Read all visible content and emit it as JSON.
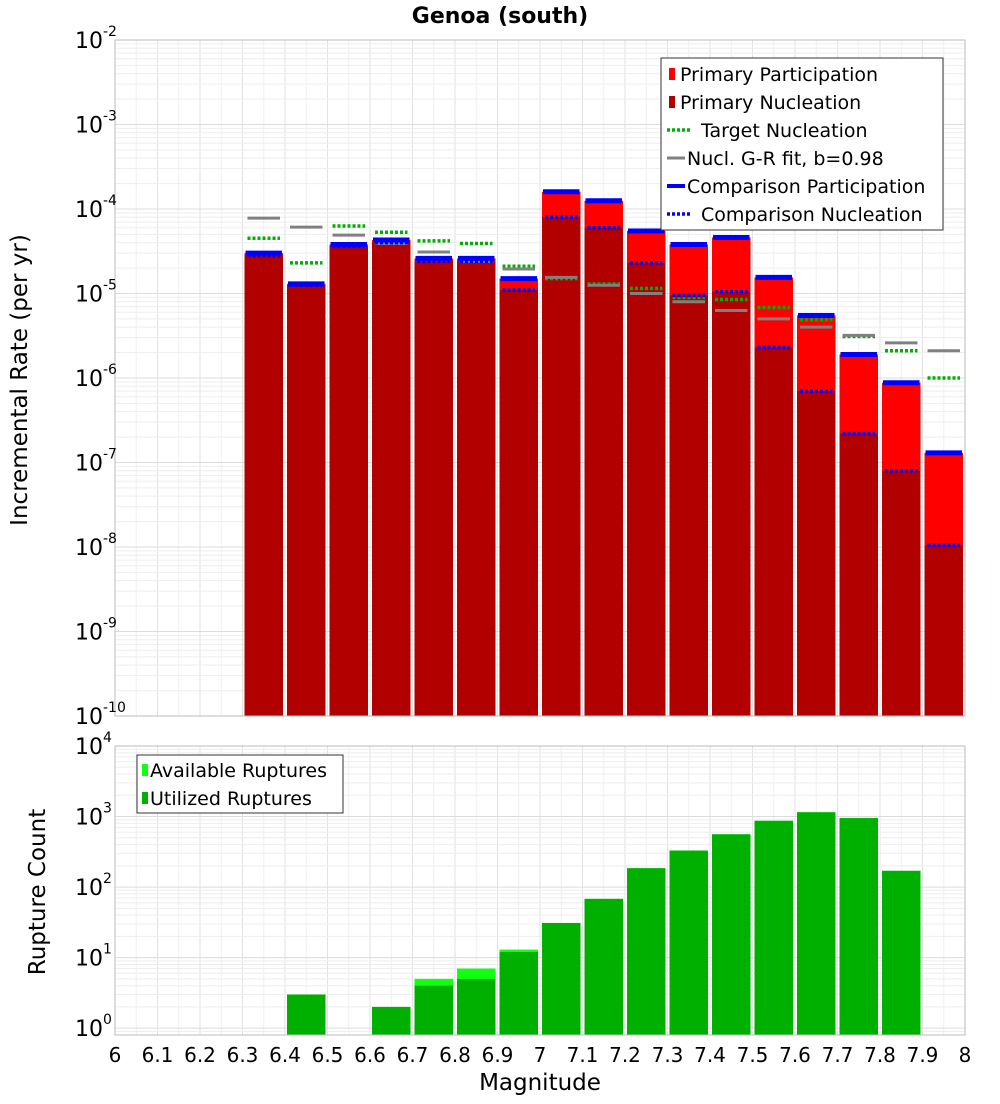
{
  "chart_data": [
    {
      "type": "bar",
      "title": "Genoa (south)",
      "xlabel": "",
      "ylabel": "Incremental Rate (per yr)",
      "y_scale": "log",
      "ylim": [
        1e-10,
        0.01
      ],
      "y_ticks": [
        {
          "base": "10",
          "exp": "-10",
          "value": 1e-10
        },
        {
          "base": "10",
          "exp": "-9",
          "value": 1e-09
        },
        {
          "base": "10",
          "exp": "-8",
          "value": 1e-08
        },
        {
          "base": "10",
          "exp": "-7",
          "value": 1e-07
        },
        {
          "base": "10",
          "exp": "-6",
          "value": 1e-06
        },
        {
          "base": "10",
          "exp": "-5",
          "value": 1e-05
        },
        {
          "base": "10",
          "exp": "-4",
          "value": 0.0001
        },
        {
          "base": "10",
          "exp": "-3",
          "value": 0.001
        },
        {
          "base": "10",
          "exp": "-2",
          "value": 0.01
        }
      ],
      "xlim": [
        6.0,
        8.0
      ],
      "grid": true,
      "legend_position": "top-right",
      "bin_width": 0.1,
      "series": [
        {
          "name": "Primary Participation",
          "kind": "bar",
          "color": "#ff0000",
          "x": [
            6.35,
            6.45,
            6.55,
            6.65,
            6.75,
            6.85,
            6.95,
            7.05,
            7.15,
            7.25,
            7.35,
            7.45,
            7.55,
            7.65,
            7.75,
            7.85,
            7.95
          ],
          "values": [
            3e-05,
            1.3e-05,
            3.8e-05,
            4.3e-05,
            2.6e-05,
            2.6e-05,
            1.5e-05,
            0.00016,
            0.000125,
            5.5e-05,
            3.8e-05,
            4.6e-05,
            1.55e-05,
            5.5e-06,
            1.9e-06,
            8.8e-07,
            1.3e-07
          ]
        },
        {
          "name": "Primary Nucleation",
          "kind": "bar",
          "color": "#b20000",
          "x": [
            6.35,
            6.45,
            6.55,
            6.65,
            6.75,
            6.85,
            6.95,
            7.05,
            7.15,
            7.25,
            7.35,
            7.45,
            7.55,
            7.65,
            7.75,
            7.85,
            7.95
          ],
          "values": [
            2.8e-05,
            1.25e-05,
            3.6e-05,
            4e-05,
            2.4e-05,
            2.4e-05,
            1.1e-05,
            8e-05,
            6e-05,
            2.3e-05,
            9.5e-06,
            1.05e-05,
            2.3e-06,
            7e-07,
            2.2e-07,
            8e-08,
            1.05e-08
          ]
        },
        {
          "name": "Target Nucleation",
          "kind": "dash",
          "style": "dotted",
          "color": "#00b000",
          "x": [
            6.35,
            6.45,
            6.55,
            6.65,
            6.75,
            6.85,
            6.95,
            7.05,
            7.15,
            7.25,
            7.35,
            7.45,
            7.55,
            7.65,
            7.75,
            7.85,
            7.95
          ],
          "values": [
            4.5e-05,
            2.3e-05,
            6.3e-05,
            5.3e-05,
            4.2e-05,
            3.9e-05,
            2.1e-05,
            1.5e-05,
            1.3e-05,
            1.15e-05,
            9e-06,
            8.5e-06,
            6.8e-06,
            4.9e-06,
            3.1e-06,
            2.1e-06,
            1e-06
          ]
        },
        {
          "name": "Nucl. G-R fit, b=0.98",
          "kind": "dash",
          "style": "solid",
          "color": "#808080",
          "x": [
            6.35,
            6.45,
            6.55,
            6.65,
            6.75,
            6.85,
            6.95,
            7.05,
            7.15,
            7.25,
            7.35,
            7.45,
            7.55,
            7.65,
            7.75,
            7.85,
            7.95
          ],
          "values": [
            7.8e-05,
            6.1e-05,
            4.9e-05,
            3.9e-05,
            3.1e-05,
            2.4e-05,
            1.95e-05,
            1.55e-05,
            1.25e-05,
            1e-05,
            8e-06,
            6.3e-06,
            5e-06,
            4e-06,
            3.2e-06,
            2.6e-06,
            2.1e-06
          ]
        },
        {
          "name": "Comparison Participation",
          "kind": "dash",
          "style": "solid-thick",
          "color": "#0000ff",
          "x": [
            6.35,
            6.45,
            6.55,
            6.65,
            6.75,
            6.85,
            6.95,
            7.05,
            7.15,
            7.25,
            7.35,
            7.45,
            7.55,
            7.65,
            7.75,
            7.85,
            7.95
          ],
          "values": [
            3e-05,
            1.3e-05,
            3.8e-05,
            4.3e-05,
            2.6e-05,
            2.6e-05,
            1.5e-05,
            0.00016,
            0.000125,
            5.5e-05,
            3.8e-05,
            4.6e-05,
            1.55e-05,
            5.5e-06,
            1.9e-06,
            8.8e-07,
            1.3e-07
          ]
        },
        {
          "name": "Comparison Nucleation",
          "kind": "dash",
          "style": "dotted",
          "color": "#0000ff",
          "x": [
            6.35,
            6.45,
            6.55,
            6.65,
            6.75,
            6.85,
            6.95,
            7.05,
            7.15,
            7.25,
            7.35,
            7.45,
            7.55,
            7.65,
            7.75,
            7.85,
            7.95
          ],
          "values": [
            2.8e-05,
            1.25e-05,
            3.6e-05,
            4e-05,
            2.4e-05,
            2.4e-05,
            1.1e-05,
            8e-05,
            6e-05,
            2.3e-05,
            9.5e-06,
            1.05e-05,
            2.3e-06,
            7e-07,
            2.2e-07,
            8e-08,
            1.05e-08
          ]
        }
      ]
    },
    {
      "type": "bar",
      "title": "",
      "xlabel": "Magnitude",
      "ylabel": "Rupture Count",
      "y_scale": "log",
      "ylim": [
        0.8,
        10000
      ],
      "y_ticks": [
        {
          "base": "10",
          "exp": "0",
          "value": 1
        },
        {
          "base": "10",
          "exp": "1",
          "value": 10
        },
        {
          "base": "10",
          "exp": "2",
          "value": 100
        },
        {
          "base": "10",
          "exp": "3",
          "value": 1000
        },
        {
          "base": "10",
          "exp": "4",
          "value": 10000
        }
      ],
      "xlim": [
        6.0,
        8.0
      ],
      "x_ticks": [
        "6",
        "6.1",
        "6.2",
        "6.3",
        "6.4",
        "6.5",
        "6.6",
        "6.7",
        "6.8",
        "6.9",
        "7",
        "7.1",
        "7.2",
        "7.3",
        "7.4",
        "7.5",
        "7.6",
        "7.7",
        "7.8",
        "7.9",
        "8"
      ],
      "grid": true,
      "legend_position": "top-left",
      "bin_width": 0.1,
      "series": [
        {
          "name": "Available Ruptures",
          "color": "#11ff11",
          "x": [
            6.45,
            6.65,
            6.75,
            6.85,
            6.95,
            7.05,
            7.15,
            7.25,
            7.35,
            7.45,
            7.55,
            7.65,
            7.75,
            7.85
          ],
          "values": [
            3,
            2,
            5,
            7,
            13,
            31,
            68,
            185,
            330,
            560,
            870,
            1150,
            950,
            170
          ]
        },
        {
          "name": "Utilized Ruptures",
          "color": "#00b000",
          "x": [
            6.45,
            6.65,
            6.75,
            6.85,
            6.95,
            7.05,
            7.15,
            7.25,
            7.35,
            7.45,
            7.55,
            7.65,
            7.75,
            7.85
          ],
          "values": [
            3,
            2,
            4,
            5,
            12,
            31,
            68,
            185,
            330,
            560,
            870,
            1150,
            950,
            170
          ]
        }
      ]
    }
  ]
}
